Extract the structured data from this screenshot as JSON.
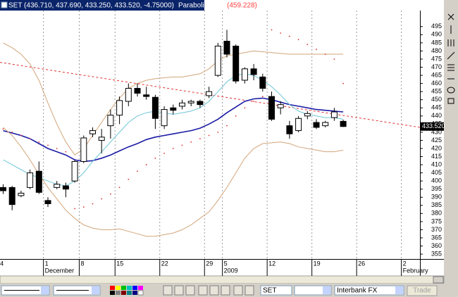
{
  "chart_data": {
    "type": "candlestick",
    "title": "SET (436.710, 437.690, 433.250, 433.520, -4.75000)",
    "indicator": "Parabolic SAR",
    "indicator_value": "(459.228)",
    "categories": [
      "4",
      null,
      null,
      null,
      null,
      "1",
      null,
      null,
      null,
      "8",
      null,
      null,
      null,
      "15",
      null,
      null,
      null,
      null,
      "22",
      null,
      null,
      null,
      null,
      "29",
      null,
      "5",
      null,
      null,
      null,
      null,
      "12",
      null,
      null,
      null,
      null,
      "19",
      null,
      null,
      null,
      null,
      "26",
      null,
      null,
      null,
      null,
      "2",
      null
    ],
    "period_labels": [
      null,
      null,
      null,
      null,
      null,
      "December",
      null,
      null,
      null,
      null,
      null,
      null,
      null,
      null,
      null,
      null,
      null,
      null,
      null,
      null,
      null,
      null,
      null,
      null,
      null,
      "2009",
      null,
      null,
      null,
      null,
      null,
      null,
      null,
      null,
      null,
      null,
      null,
      null,
      null,
      null,
      null,
      null,
      null,
      null,
      null,
      "February",
      null
    ],
    "open": [
      396,
      396,
      391,
      396,
      406,
      388,
      396,
      397,
      400,
      412,
      429,
      425,
      434,
      440.5,
      449,
      457,
      453,
      451.5,
      434,
      445,
      446,
      448,
      449,
      452.5,
      465,
      486,
      483,
      462,
      469,
      464,
      452,
      445,
      434,
      431,
      440,
      436,
      434,
      439,
      436.71,
      null,
      null,
      null,
      null,
      null,
      null,
      null,
      null
    ],
    "high": [
      398,
      397,
      394,
      407,
      412,
      390,
      400,
      399,
      413,
      428,
      433,
      432,
      444,
      452,
      460,
      460,
      458,
      453,
      446,
      447,
      450,
      450,
      450,
      458,
      485,
      493,
      484,
      470,
      472,
      466,
      455,
      449,
      437,
      440,
      443,
      438,
      437,
      445,
      437.69,
      null,
      null,
      null,
      null,
      null,
      null,
      null,
      null
    ],
    "low": [
      392,
      382,
      390,
      395,
      392,
      384,
      395,
      390,
      399,
      411,
      427,
      417,
      426,
      435,
      446,
      452,
      450,
      432,
      432,
      441,
      444,
      446,
      445,
      451,
      464,
      476,
      460,
      460,
      462,
      455,
      437,
      441,
      426,
      430,
      438,
      432,
      433,
      437,
      433.25,
      null,
      null,
      null,
      null,
      null,
      null,
      null,
      null
    ],
    "close": [
      394,
      385.5,
      392.5,
      405,
      393,
      386,
      398,
      395,
      412,
      426.5,
      431,
      427,
      440.5,
      449.5,
      457,
      454,
      452,
      438.5,
      444,
      443.5,
      448,
      449,
      447,
      455,
      483,
      478,
      461.5,
      469,
      465.5,
      457,
      438,
      447,
      429,
      438.5,
      441.5,
      433,
      436,
      442.5,
      433.52,
      null,
      null,
      null,
      null,
      null,
      null,
      null,
      null
    ],
    "up_color": "#ffffff",
    "down_color": "#000000",
    "lines": [
      {
        "color": "#1a1aa6",
        "width": 1.6,
        "values": [
          431,
          429.5,
          428,
          426,
          423,
          420,
          418,
          416,
          413,
          412,
          412.5,
          414,
          416,
          418.5,
          421,
          423,
          425.5,
          427,
          428,
          429,
          430,
          431,
          432.5,
          435,
          438,
          442,
          445.5,
          449,
          450.5,
          451,
          450,
          448.5,
          447,
          446,
          445,
          444,
          443.5,
          443,
          442.5,
          null,
          null,
          null,
          null,
          null,
          null,
          null,
          null
        ]
      },
      {
        "color": "#6fc6d6",
        "width": 1,
        "values": [
          413,
          410,
          407,
          404,
          402,
          400,
          398,
          397,
          400,
          405,
          412,
          418,
          424,
          430,
          436,
          440,
          442,
          443,
          442,
          441,
          442,
          443,
          445,
          449,
          455,
          461,
          465,
          466,
          465,
          462,
          458,
          453,
          447,
          443,
          441,
          440,
          439,
          439,
          438,
          null,
          null,
          null,
          null,
          null,
          null,
          null,
          null
        ]
      },
      {
        "color": "#d2a57a",
        "width": 1,
        "values": [
          485,
          482,
          478,
          472,
          462,
          448,
          435,
          424,
          416,
          420,
          428,
          436,
          444,
          451,
          457,
          460,
          462,
          463,
          463.5,
          464,
          464,
          465,
          466,
          469,
          474,
          477,
          478,
          479,
          480,
          479.5,
          479,
          478.5,
          478,
          478,
          478,
          478,
          478,
          478,
          478,
          null,
          null,
          null,
          null,
          null,
          null,
          null,
          null
        ]
      },
      {
        "color": "#d2a57a",
        "width": 1,
        "values": [
          433,
          428,
          421,
          413,
          404,
          396,
          389,
          382,
          377,
          373,
          371,
          370,
          370,
          370.5,
          369,
          367.5,
          366,
          366,
          367,
          368,
          370,
          373,
          377,
          381,
          388,
          396,
          405,
          414,
          420,
          423,
          423.5,
          424,
          423,
          421,
          420,
          419,
          418,
          418,
          419,
          null,
          null,
          null,
          null,
          null,
          null,
          null,
          null
        ]
      }
    ],
    "sar": {
      "color": "#e03030",
      "values": [
        432,
        430,
        428,
        426,
        424,
        422,
        420,
        418,
        383,
        384,
        386,
        389,
        392,
        396,
        401,
        406,
        410,
        414,
        417,
        420,
        422,
        424,
        426,
        428,
        430,
        434,
        440,
        445,
        449,
        452,
        493,
        491,
        489,
        487,
        484,
        481,
        478,
        475,
        460,
        null,
        null,
        null,
        null,
        null,
        null,
        null,
        null
      ]
    },
    "trend_line": {
      "color": "#e03030",
      "start": 473,
      "end": 433
    },
    "last_price": {
      "value": 433.52,
      "label": "433.520"
    },
    "ylim": [
      352,
      504
    ],
    "yticks": [
      355,
      360,
      365,
      370,
      375,
      380,
      385,
      390,
      395,
      400,
      405,
      410,
      415,
      420,
      425,
      430,
      435,
      440,
      445,
      450,
      455,
      460,
      465,
      470,
      475,
      480,
      485,
      490,
      495
    ],
    "grid": "x"
  },
  "toolbar": {
    "symbol": "SET",
    "broker": "Interbank FX",
    "button": "Trade"
  }
}
